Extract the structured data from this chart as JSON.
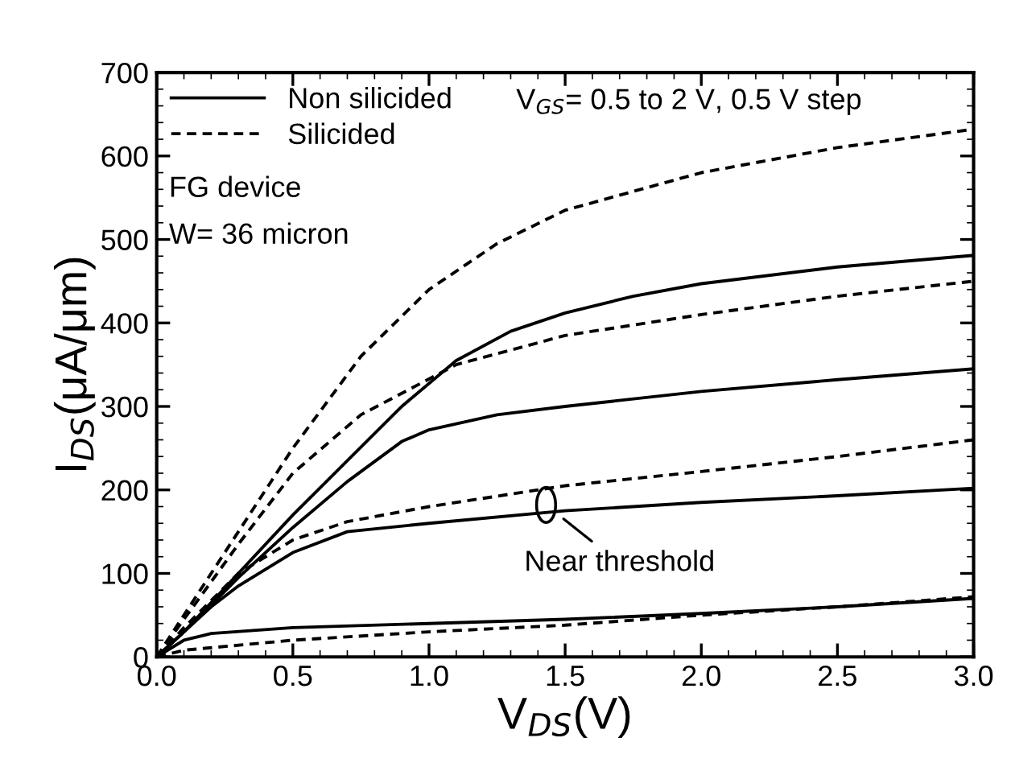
{
  "chart_data": {
    "type": "line",
    "xlabel": "V$_{DS}$(V)",
    "ylabel": "I$_{DS}$(μA/μm)",
    "xlim": [
      0,
      3
    ],
    "ylim": [
      0,
      700
    ],
    "xticks": [
      {
        "value": 0,
        "label": "0.0"
      },
      {
        "value": 0.5,
        "label": "0.5"
      },
      {
        "value": 1,
        "label": "1.0"
      },
      {
        "value": 1.5,
        "label": "1.5"
      },
      {
        "value": 2,
        "label": "2.0"
      },
      {
        "value": 2.5,
        "label": "2.5"
      },
      {
        "value": 3,
        "label": "3.0"
      }
    ],
    "yticks": [
      0,
      100,
      200,
      300,
      400,
      500,
      600,
      700
    ],
    "grid": false,
    "legend": "top left",
    "marker": "none",
    "series": [
      {
        "name": "Non silicided",
        "color": "#000000",
        "line_style": "solid",
        "x": [
          0,
          0.1,
          0.2,
          0.5,
          1.0,
          1.5,
          2.0,
          2.5,
          3.0
        ],
        "values": [
          0,
          20,
          28,
          35,
          40,
          45,
          52,
          60,
          70
        ]
      },
      {
        "color": "#000000",
        "line_style": "solid",
        "x": [
          0,
          0.1,
          0.2,
          0.3,
          0.5,
          0.7,
          1.0,
          1.5,
          2.0,
          2.5,
          3.0
        ],
        "values": [
          0,
          30,
          60,
          85,
          125,
          150,
          160,
          175,
          185,
          193,
          202
        ]
      },
      {
        "color": "#000000",
        "line_style": "solid",
        "x": [
          0,
          0.1,
          0.2,
          0.3,
          0.5,
          0.7,
          0.9,
          1.0,
          1.25,
          1.5,
          2.0,
          2.5,
          3.0
        ],
        "values": [
          0,
          30,
          62,
          95,
          155,
          210,
          258,
          272,
          290,
          300,
          318,
          332,
          345
        ]
      },
      {
        "color": "#000000",
        "line_style": "solid",
        "x": [
          0,
          0.1,
          0.2,
          0.3,
          0.5,
          0.7,
          0.9,
          1.1,
          1.3,
          1.5,
          1.75,
          2.0,
          2.5,
          3.0
        ],
        "values": [
          0,
          30,
          65,
          100,
          170,
          235,
          300,
          355,
          390,
          412,
          432,
          447,
          467,
          481
        ]
      },
      {
        "name": "Silicided",
        "color": "#000000",
        "line_style": "dashed",
        "x": [
          0,
          0.1,
          0.5,
          1.0,
          1.5,
          2.0,
          2.5,
          3.0
        ],
        "values": [
          0,
          8,
          20,
          30,
          38,
          50,
          60,
          72
        ]
      },
      {
        "color": "#000000",
        "line_style": "dashed",
        "x": [
          0,
          0.1,
          0.3,
          0.5,
          0.7,
          1.0,
          1.5,
          2.0,
          2.5,
          3.0
        ],
        "values": [
          0,
          35,
          100,
          140,
          162,
          180,
          205,
          222,
          240,
          260
        ]
      },
      {
        "color": "#000000",
        "line_style": "dashed",
        "x": [
          0,
          0.1,
          0.3,
          0.5,
          0.75,
          1.1,
          1.5,
          2.0,
          2.5,
          3.0
        ],
        "values": [
          0,
          45,
          135,
          220,
          290,
          350,
          385,
          410,
          432,
          450
        ]
      },
      {
        "color": "#000000",
        "line_style": "dashed",
        "x": [
          0,
          0.1,
          0.3,
          0.5,
          0.75,
          1.0,
          1.25,
          1.5,
          2.0,
          2.5,
          3.0
        ],
        "values": [
          0,
          50,
          150,
          250,
          360,
          440,
          495,
          535,
          580,
          610,
          632
        ]
      }
    ],
    "annotations": [
      "V$_{GS}$= 0.5 to 2 V, 0.5 V step",
      "FG device",
      "W= 36 micron",
      {
        "text": "Near threshold",
        "x": 1.43,
        "y": 182
      }
    ]
  }
}
